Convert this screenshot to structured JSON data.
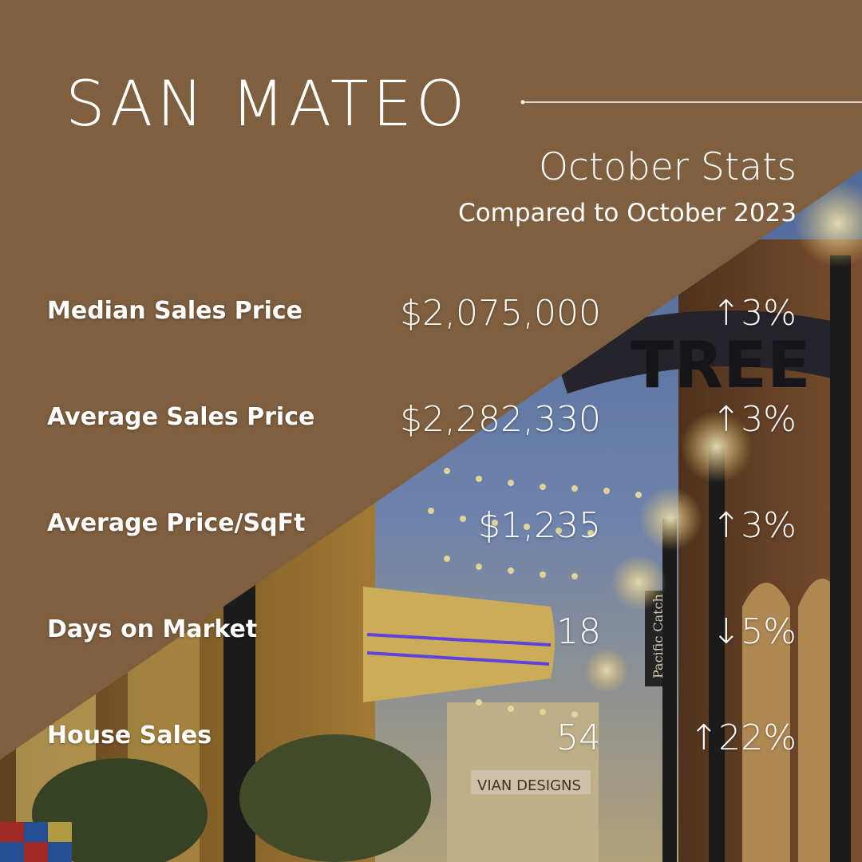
{
  "header": {
    "title": "SAN MATEO",
    "subtitle": "October Stats",
    "comparison": "Compared to October 2023"
  },
  "background": {
    "sign_text": "TREE",
    "shop_sign": "VIAN DESIGNS",
    "banner_text": "Pacific Catch",
    "overlay_color": "#7e5f3f"
  },
  "stats": [
    {
      "label": "Median Sales Price",
      "value": "$2,075,000",
      "direction": "up",
      "arrow": "↑",
      "change": "3%"
    },
    {
      "label": "Average Sales Price",
      "value": "$2,282,330",
      "direction": "up",
      "arrow": "↑",
      "change": "3%"
    },
    {
      "label": "Average Price/SqFt",
      "value": "$1,235",
      "direction": "up",
      "arrow": "↑",
      "change": "3%"
    },
    {
      "label": "Days on Market",
      "value": "18",
      "direction": "down",
      "arrow": "↓",
      "change": "5%"
    },
    {
      "label": "House Sales",
      "value": "54",
      "direction": "up",
      "arrow": "↑",
      "change": "22%"
    }
  ]
}
